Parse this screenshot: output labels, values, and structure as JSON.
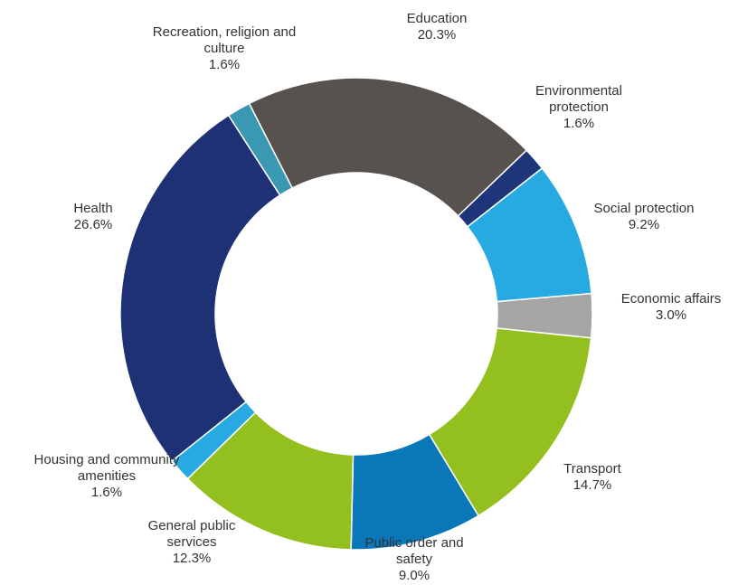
{
  "chart_data": {
    "type": "pie",
    "categories": [
      "Education",
      "Environmental protection",
      "Social protection",
      "Economic affairs",
      "Transport",
      "Public order and safety",
      "General public services",
      "Housing and community amenities",
      "Health",
      "Recreation, religion and culture"
    ],
    "values": [
      20.3,
      1.6,
      9.2,
      3.0,
      14.7,
      9.0,
      12.3,
      1.6,
      26.6,
      1.6
    ],
    "value_labels": [
      "20.3%",
      "1.6%",
      "9.2%",
      "3.0%",
      "14.7%",
      "9.0%",
      "12.3%",
      "1.6%",
      "26.6%",
      "1.6%"
    ],
    "colors": [
      "#57524e",
      "#1f3579",
      "#27a9e1",
      "#a7a5a3",
      "#93c01f",
      "#0a77b9",
      "#93c01f",
      "#27a9e1",
      "#1e3174",
      "#3a98b3"
    ]
  }
}
